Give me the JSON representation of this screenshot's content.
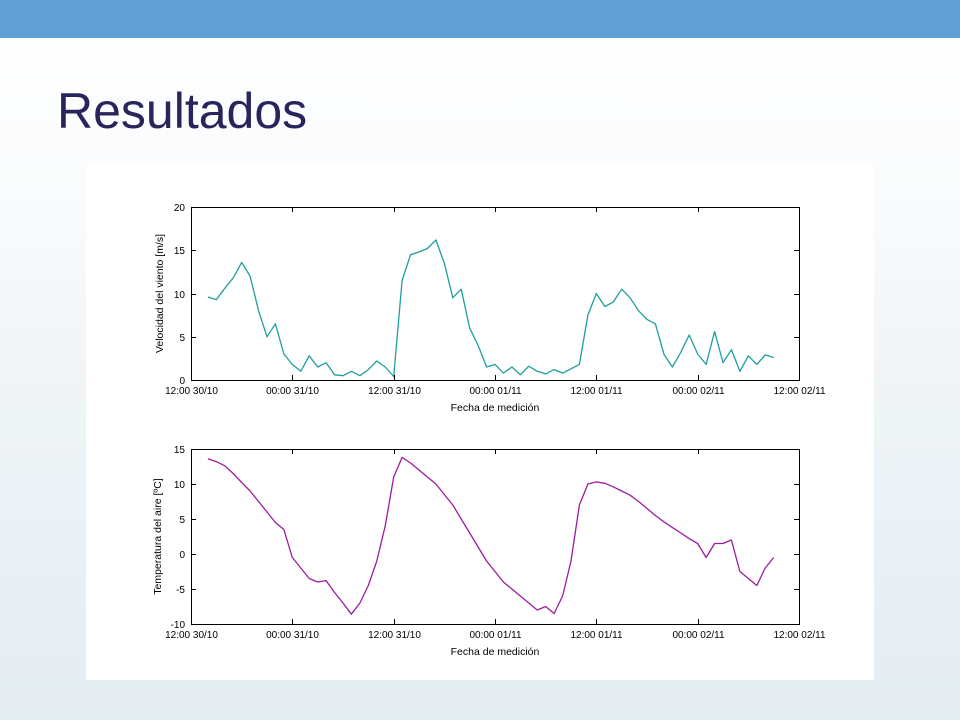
{
  "slide": {
    "title": "Resultados"
  },
  "theme": {
    "top_bar_color": "#5f9fd4",
    "title_color": "#26265c"
  },
  "chart_data": [
    {
      "type": "line",
      "xlabel": "Fecha de medición",
      "ylabel": "Velocidad del viento [m/s]",
      "xlim": [
        "12:00 30/10",
        "12:00 02/11"
      ],
      "xticks": [
        "12:00 30/10",
        "00:00 31/10",
        "12:00 31/10",
        "00:00 01/11",
        "12:00 01/11",
        "00:00 02/11",
        "12:00 02/11"
      ],
      "ylim": [
        0,
        20
      ],
      "yticks": [
        0,
        5,
        10,
        15,
        20
      ],
      "grid": false,
      "legend": "none",
      "x": [
        "14:00 30/10",
        "15:00 30/10",
        "16:00 30/10",
        "17:00 30/10",
        "18:00 30/10",
        "19:00 30/10",
        "20:00 30/10",
        "21:00 30/10",
        "22:00 30/10",
        "23:00 30/10",
        "00:00 31/10",
        "01:00 31/10",
        "02:00 31/10",
        "03:00 31/10",
        "04:00 31/10",
        "05:00 31/10",
        "06:00 31/10",
        "07:00 31/10",
        "08:00 31/10",
        "09:00 31/10",
        "10:00 31/10",
        "11:00 31/10",
        "12:00 31/10",
        "13:00 31/10",
        "14:00 31/10",
        "15:00 31/10",
        "16:00 31/10",
        "17:00 31/10",
        "18:00 31/10",
        "19:00 31/10",
        "20:00 31/10",
        "21:00 31/10",
        "22:00 31/10",
        "23:00 31/10",
        "00:00 01/11",
        "01:00 01/11",
        "02:00 01/11",
        "03:00 01/11",
        "04:00 01/11",
        "05:00 01/11",
        "06:00 01/11",
        "07:00 01/11",
        "08:00 01/11",
        "09:00 01/11",
        "10:00 01/11",
        "11:00 01/11",
        "12:00 01/11",
        "13:00 01/11",
        "14:00 01/11",
        "15:00 01/11",
        "16:00 01/11",
        "17:00 01/11",
        "18:00 01/11",
        "19:00 01/11",
        "20:00 01/11",
        "21:00 01/11",
        "22:00 01/11",
        "23:00 01/11",
        "00:00 02/11",
        "01:00 02/11",
        "02:00 02/11",
        "03:00 02/11",
        "04:00 02/11",
        "05:00 02/11",
        "06:00 02/11",
        "07:00 02/11",
        "08:00 02/11",
        "09:00 02/11"
      ],
      "series": [
        {
          "color": "#1f9e9e",
          "values": [
            9.6,
            9.3,
            10.6,
            11.8,
            13.6,
            12.0,
            8.0,
            5.0,
            6.5,
            3.0,
            1.8,
            1.0,
            2.8,
            1.5,
            2.0,
            0.6,
            0.5,
            1.0,
            0.5,
            1.2,
            2.2,
            1.5,
            0.4,
            11.5,
            14.5,
            14.8,
            15.2,
            16.2,
            13.5,
            9.5,
            10.5,
            6.0,
            4.0,
            1.5,
            1.8,
            0.8,
            1.5,
            0.6,
            1.6,
            1.0,
            0.7,
            1.2,
            0.8,
            1.3,
            1.8,
            7.5,
            10.0,
            8.5,
            9.0,
            10.5,
            9.5,
            8.0,
            7.0,
            6.5,
            3.0,
            1.5,
            3.2,
            5.2,
            3.0,
            1.8,
            5.6,
            2.0,
            3.5,
            1.0,
            2.8,
            1.8,
            2.9,
            2.6
          ]
        }
      ]
    },
    {
      "type": "line",
      "xlabel": "Fecha de medición",
      "ylabel": "Temperatura del aire [ºC]",
      "xlim": [
        "12:00 30/10",
        "12:00 02/11"
      ],
      "xticks": [
        "12:00 30/10",
        "00:00 31/10",
        "12:00 31/10",
        "00:00 01/11",
        "12:00 01/11",
        "00:00 02/11",
        "12:00 02/11"
      ],
      "ylim": [
        -10,
        15
      ],
      "yticks": [
        -10,
        -5,
        0,
        5,
        10,
        15
      ],
      "grid": false,
      "legend": "none",
      "x": [
        "14:00 30/10",
        "15:00 30/10",
        "16:00 30/10",
        "17:00 30/10",
        "18:00 30/10",
        "19:00 30/10",
        "20:00 30/10",
        "21:00 30/10",
        "22:00 30/10",
        "23:00 30/10",
        "00:00 31/10",
        "01:00 31/10",
        "02:00 31/10",
        "03:00 31/10",
        "04:00 31/10",
        "05:00 31/10",
        "06:00 31/10",
        "07:00 31/10",
        "08:00 31/10",
        "09:00 31/10",
        "10:00 31/10",
        "11:00 31/10",
        "12:00 31/10",
        "13:00 31/10",
        "14:00 31/10",
        "15:00 31/10",
        "16:00 31/10",
        "17:00 31/10",
        "18:00 31/10",
        "19:00 31/10",
        "20:00 31/10",
        "21:00 31/10",
        "22:00 31/10",
        "23:00 31/10",
        "00:00 01/11",
        "01:00 01/11",
        "02:00 01/11",
        "03:00 01/11",
        "04:00 01/11",
        "05:00 01/11",
        "06:00 01/11",
        "07:00 01/11",
        "08:00 01/11",
        "09:00 01/11",
        "10:00 01/11",
        "11:00 01/11",
        "12:00 01/11",
        "13:00 01/11",
        "14:00 01/11",
        "15:00 01/11",
        "16:00 01/11",
        "17:00 01/11",
        "18:00 01/11",
        "19:00 01/11",
        "20:00 01/11",
        "21:00 01/11",
        "22:00 01/11",
        "23:00 01/11",
        "00:00 02/11",
        "01:00 02/11",
        "02:00 02/11",
        "03:00 02/11",
        "04:00 02/11",
        "05:00 02/11",
        "06:00 02/11",
        "07:00 02/11",
        "08:00 02/11",
        "09:00 02/11"
      ],
      "series": [
        {
          "color": "#9c1c9e",
          "values": [
            13.6,
            13.2,
            12.6,
            11.5,
            10.2,
            9.0,
            7.5,
            6.0,
            4.5,
            3.5,
            -0.5,
            -2.0,
            -3.5,
            -4.0,
            -3.8,
            -5.5,
            -7.0,
            -8.6,
            -7.0,
            -4.5,
            -1.0,
            4.0,
            11.0,
            13.8,
            13.0,
            12.0,
            11.0,
            10.0,
            8.5,
            7.0,
            5.0,
            3.0,
            1.0,
            -1.0,
            -2.5,
            -4.0,
            -5.0,
            -6.0,
            -7.0,
            -8.0,
            -7.5,
            -8.5,
            -6.0,
            -1.0,
            7.0,
            10.0,
            10.3,
            10.1,
            9.6,
            9.0,
            8.4,
            7.5,
            6.5,
            5.5,
            4.6,
            3.8,
            3.0,
            2.2,
            1.5,
            -0.5,
            1.5,
            1.5,
            2.0,
            -2.5,
            -3.5,
            -4.5,
            -2.0,
            -0.5
          ]
        }
      ]
    }
  ]
}
